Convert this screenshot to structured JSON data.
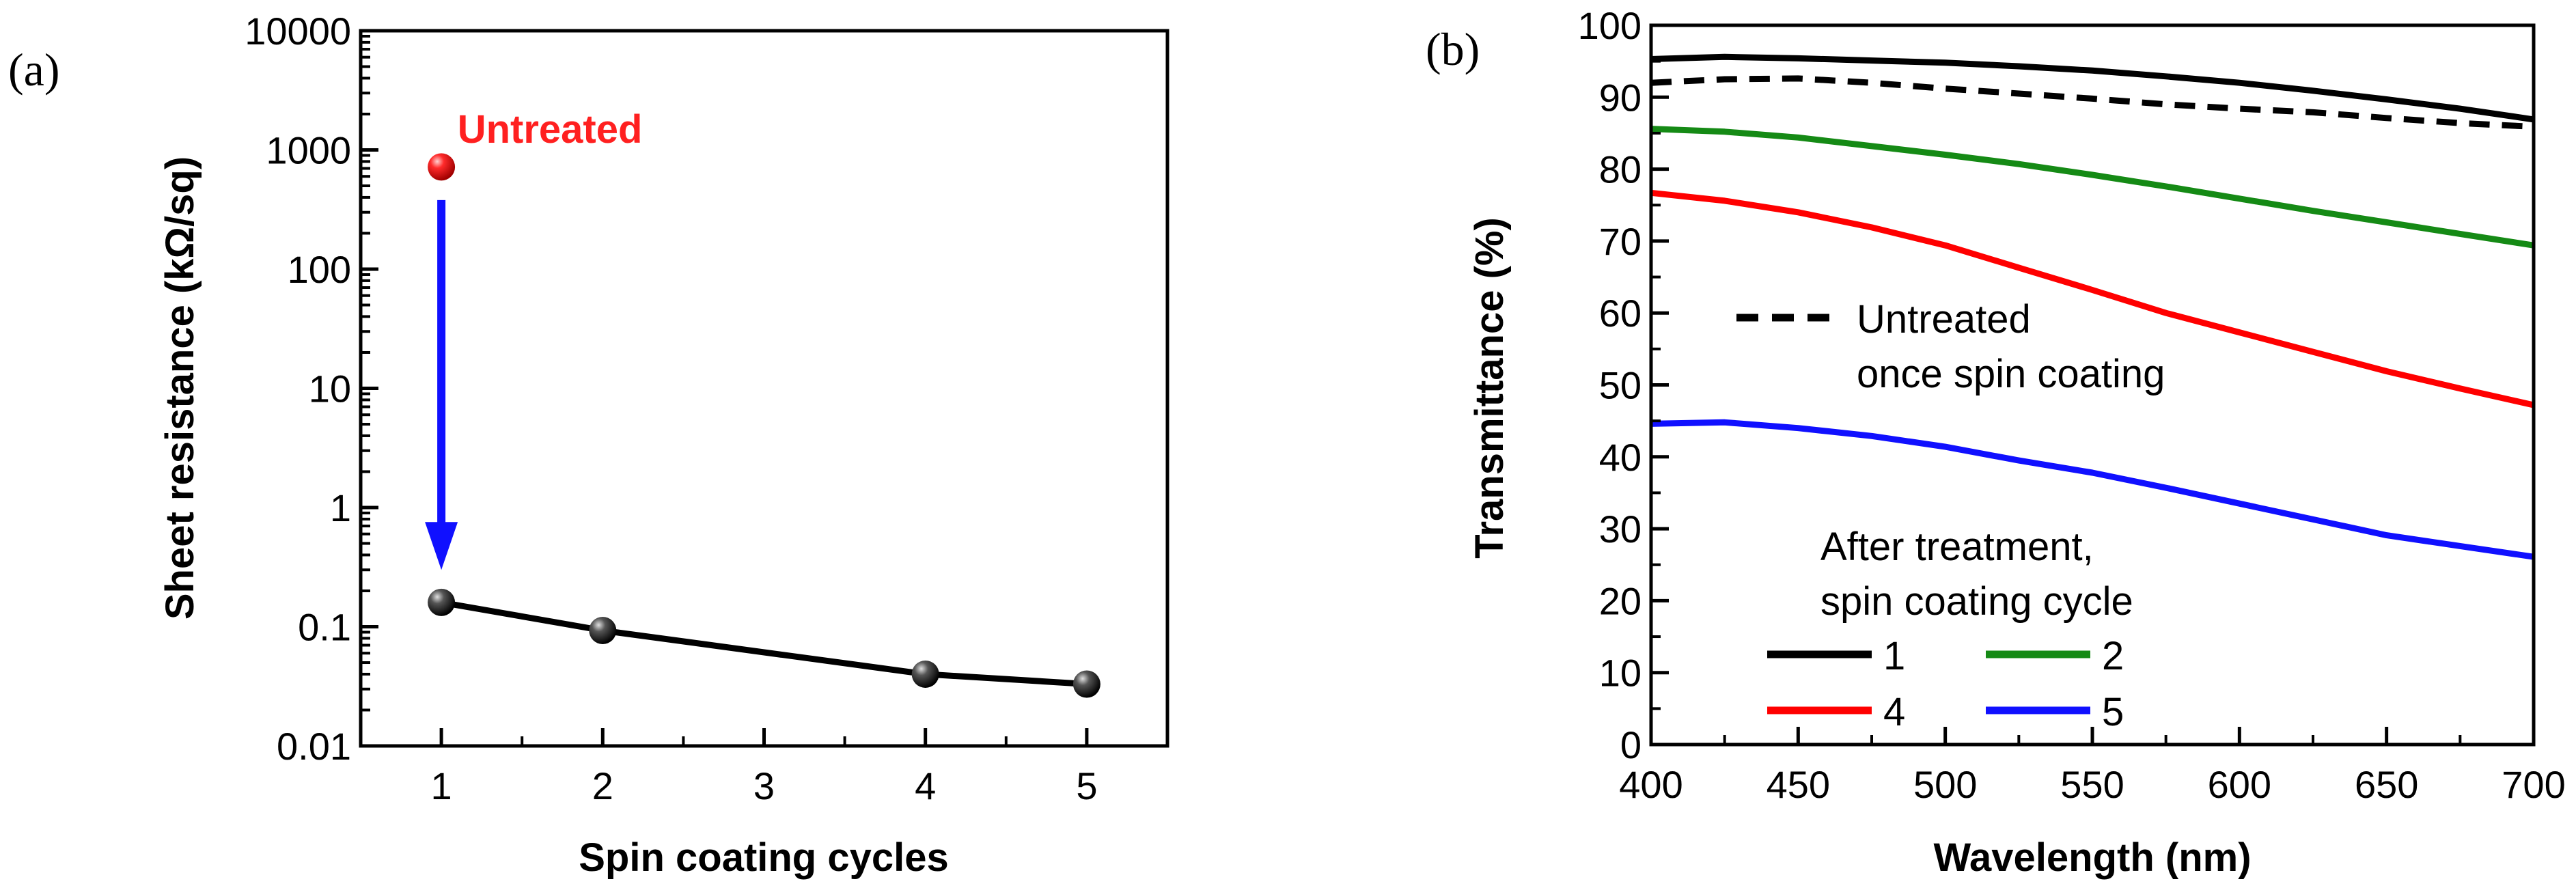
{
  "figure": {
    "panel_a_label": "(a)",
    "panel_b_label": "(b)"
  },
  "chart_data": [
    {
      "panel": "(a)",
      "type": "line",
      "title": "",
      "xlabel": "Spin coating cycles",
      "ylabel": "Sheet resistance (kΩ/sq)",
      "xlim": [
        0.5,
        5.5
      ],
      "ylim": [
        0.01,
        10000
      ],
      "yscale": "log",
      "x_ticks": [
        1,
        2,
        3,
        4,
        5
      ],
      "y_ticks": [
        0.01,
        0.1,
        1,
        10,
        100,
        1000,
        10000
      ],
      "y_tick_labels": [
        "0.01",
        "0.1",
        "1",
        "10",
        "100",
        "1000",
        "10000"
      ],
      "grid": false,
      "series": [
        {
          "name": "After treatment",
          "color": "#000000",
          "x": [
            1,
            2,
            4,
            5
          ],
          "y": [
            0.16,
            0.093,
            0.04,
            0.033
          ]
        },
        {
          "name": "Untreated",
          "color": "#ff0000",
          "x": [
            1
          ],
          "y": [
            720
          ]
        }
      ],
      "annotations": [
        {
          "text": "Untreated",
          "color": "#ff2020",
          "x": 1.1,
          "y": 1500
        }
      ],
      "arrow": {
        "color": "#1010ff",
        "from": {
          "x": 1,
          "y": 380
        },
        "to": {
          "x": 1,
          "y": 0.3
        }
      }
    },
    {
      "panel": "(b)",
      "type": "line",
      "title": "",
      "xlabel": "Wavelength (nm)",
      "ylabel": "Transmittance (%)",
      "xlim": [
        400,
        700
      ],
      "ylim": [
        0,
        100
      ],
      "x_ticks": [
        400,
        450,
        500,
        550,
        600,
        650,
        700
      ],
      "y_ticks": [
        0,
        10,
        20,
        30,
        40,
        50,
        60,
        70,
        80,
        90,
        100
      ],
      "grid": false,
      "legend": {
        "untreated_line1": "Untreated",
        "untreated_line2": "once spin coating",
        "title_line1": "After treatment,",
        "title_line2": "spin coating cycle",
        "entries": [
          "1",
          "2",
          "4",
          "5"
        ]
      },
      "series": [
        {
          "name": "1",
          "color": "#000000",
          "dashed": false,
          "x": [
            400,
            425,
            450,
            475,
            500,
            525,
            550,
            575,
            600,
            625,
            650,
            675,
            700
          ],
          "y": [
            95.3,
            95.6,
            95.4,
            95.1,
            94.8,
            94.3,
            93.7,
            92.9,
            92.0,
            90.9,
            89.7,
            88.4,
            86.9
          ]
        },
        {
          "name": "Untreated once spin coating",
          "color": "#000000",
          "dashed": true,
          "x": [
            400,
            425,
            450,
            475,
            500,
            525,
            550,
            575,
            600,
            625,
            650,
            675,
            700
          ],
          "y": [
            92.0,
            92.5,
            92.6,
            92.0,
            91.2,
            90.5,
            89.8,
            89.0,
            88.4,
            87.9,
            87.1,
            86.4,
            85.9
          ]
        },
        {
          "name": "2",
          "color": "#158a15",
          "dashed": false,
          "x": [
            400,
            425,
            450,
            475,
            500,
            525,
            550,
            575,
            600,
            625,
            650,
            675,
            700
          ],
          "y": [
            85.6,
            85.2,
            84.4,
            83.2,
            82.0,
            80.7,
            79.2,
            77.6,
            75.9,
            74.2,
            72.6,
            71.0,
            69.4
          ]
        },
        {
          "name": "4",
          "color": "#ff0000",
          "dashed": false,
          "x": [
            400,
            425,
            450,
            475,
            500,
            525,
            550,
            575,
            600,
            625,
            650,
            675,
            700
          ],
          "y": [
            76.7,
            75.6,
            74.0,
            71.9,
            69.4,
            66.3,
            63.2,
            60.0,
            57.3,
            54.6,
            51.9,
            49.5,
            47.2
          ]
        },
        {
          "name": "5",
          "color": "#1010ff",
          "dashed": false,
          "x": [
            400,
            425,
            450,
            475,
            500,
            525,
            550,
            575,
            600,
            625,
            650,
            675,
            700
          ],
          "y": [
            44.6,
            44.8,
            44.0,
            42.9,
            41.4,
            39.5,
            37.8,
            35.7,
            33.5,
            31.3,
            29.1,
            27.6,
            26.1
          ]
        }
      ]
    }
  ]
}
